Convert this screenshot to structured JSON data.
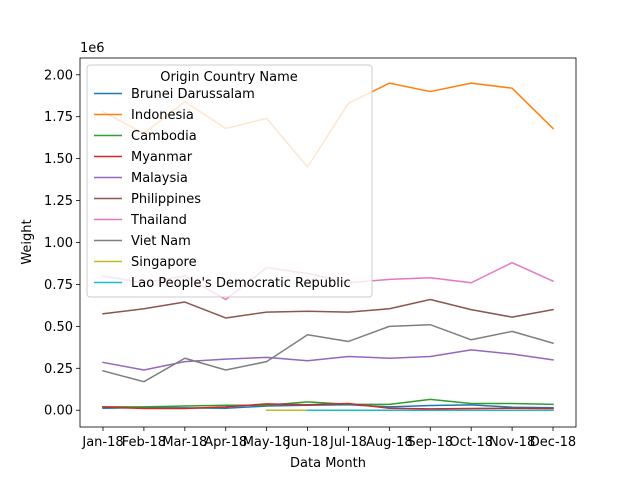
{
  "chart_data": {
    "type": "line",
    "xlabel": "Data Month",
    "ylabel": "Weight",
    "y_offset_label": "1e6",
    "ylim": [
      -0.1,
      2.1
    ],
    "y_ticks": [
      "0.00",
      "0.25",
      "0.50",
      "0.75",
      "1.00",
      "1.25",
      "1.50",
      "1.75",
      "2.00"
    ],
    "y_tick_values": [
      0,
      0.25,
      0.5,
      0.75,
      1.0,
      1.25,
      1.5,
      1.75,
      2.0
    ],
    "categories": [
      "Jan-18",
      "Feb-18",
      "Mar-18",
      "Apr-18",
      "May-18",
      "Jun-18",
      "Jul-18",
      "Aug-18",
      "Sep-18",
      "Oct-18",
      "Nov-18",
      "Dec-18"
    ],
    "legend": {
      "title": "Origin Country Name",
      "placement": "upper-left"
    },
    "series": [
      {
        "name": "Brunei Darussalam",
        "color": "#1f77b4",
        "values": [
          0.012,
          0.015,
          0.014,
          0.012,
          0.025,
          0.03,
          0.033,
          0.02,
          0.028,
          0.032,
          0.018,
          0.015
        ]
      },
      {
        "name": "Indonesia",
        "color": "#ff7f0e",
        "values": [
          1.78,
          1.65,
          1.84,
          1.68,
          1.74,
          1.45,
          1.83,
          1.95,
          1.9,
          1.95,
          1.92,
          1.68
        ]
      },
      {
        "name": "Cambodia",
        "color": "#2ca02c",
        "values": [
          0.02,
          0.02,
          0.025,
          0.03,
          0.03,
          0.05,
          0.035,
          0.035,
          0.065,
          0.04,
          0.04,
          0.035
        ]
      },
      {
        "name": "Myanmar",
        "color": "#d62728",
        "values": [
          0.02,
          0.01,
          0.01,
          0.02,
          0.038,
          0.033,
          0.04,
          0.012,
          0.008,
          0.01,
          0.012,
          0.01
        ]
      },
      {
        "name": "Malaysia",
        "color": "#9467bd",
        "values": [
          0.285,
          0.24,
          0.29,
          0.305,
          0.315,
          0.295,
          0.32,
          0.31,
          0.32,
          0.36,
          0.335,
          0.3
        ]
      },
      {
        "name": "Philippines",
        "color": "#8c564b",
        "values": [
          0.575,
          0.605,
          0.645,
          0.55,
          0.585,
          0.59,
          0.585,
          0.605,
          0.66,
          0.6,
          0.555,
          0.6
        ]
      },
      {
        "name": "Thailand",
        "color": "#e377c2",
        "values": [
          0.8,
          0.76,
          0.8,
          0.66,
          0.85,
          0.815,
          0.76,
          0.78,
          0.79,
          0.76,
          0.88,
          0.77
        ]
      },
      {
        "name": "Viet Nam",
        "color": "#7f7f7f",
        "values": [
          0.235,
          0.17,
          0.31,
          0.24,
          0.29,
          0.45,
          0.41,
          0.5,
          0.51,
          0.42,
          0.47,
          0.4
        ]
      },
      {
        "name": "Singapore",
        "color": "#bcbd22",
        "values": [
          null,
          null,
          null,
          null,
          0.0,
          0.0,
          null,
          null,
          null,
          null,
          null,
          null
        ]
      },
      {
        "name": "Lao People's Democratic Republic",
        "color": "#17becf",
        "values": [
          null,
          null,
          null,
          null,
          null,
          0.0,
          0.0,
          0.0,
          0.0,
          0.0,
          0.0,
          0.0
        ]
      }
    ]
  }
}
